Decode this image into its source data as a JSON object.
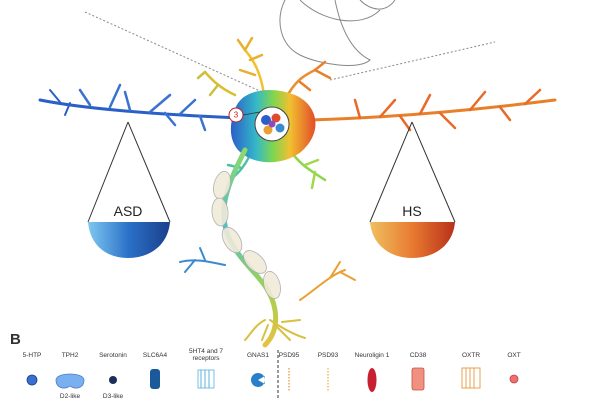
{
  "balance": {
    "left_pan_label": "ASD",
    "right_pan_label": "HS",
    "badge_number": "3"
  },
  "panel_b": {
    "letter": "B",
    "legend": [
      {
        "name": "5-HTP",
        "icon": "dot-icon"
      },
      {
        "name": "TPH2",
        "icon": "blob-icon"
      },
      {
        "name": "Serotonin",
        "icon": "dot-icon"
      },
      {
        "name": "SLC6A4",
        "icon": "transporter-icon"
      },
      {
        "name": "5HT4 and 7 receptors",
        "icon": "receptor-icon"
      },
      {
        "name": "GNAS1",
        "icon": "pacman-icon"
      },
      {
        "name": "PSD95",
        "icon": "dashed-line-icon"
      },
      {
        "name": "PSD93",
        "icon": "dashed-line-icon"
      },
      {
        "name": "Neuroligin 1",
        "icon": "ellipse-icon"
      },
      {
        "name": "CD38",
        "icon": "rect-icon"
      },
      {
        "name": "OXTR",
        "icon": "receptor-icon"
      },
      {
        "name": "OXT",
        "icon": "dot-icon"
      }
    ],
    "partial_captions": [
      "D2-like",
      "D3-like"
    ]
  },
  "colors": {
    "left_pan_top": "#1e5fb0",
    "right_pan_top": "#e07a2a",
    "neuron_gradient": [
      "#2a6fd0",
      "#3fc8a0",
      "#8ed64f",
      "#f0b030",
      "#e0502a"
    ]
  }
}
